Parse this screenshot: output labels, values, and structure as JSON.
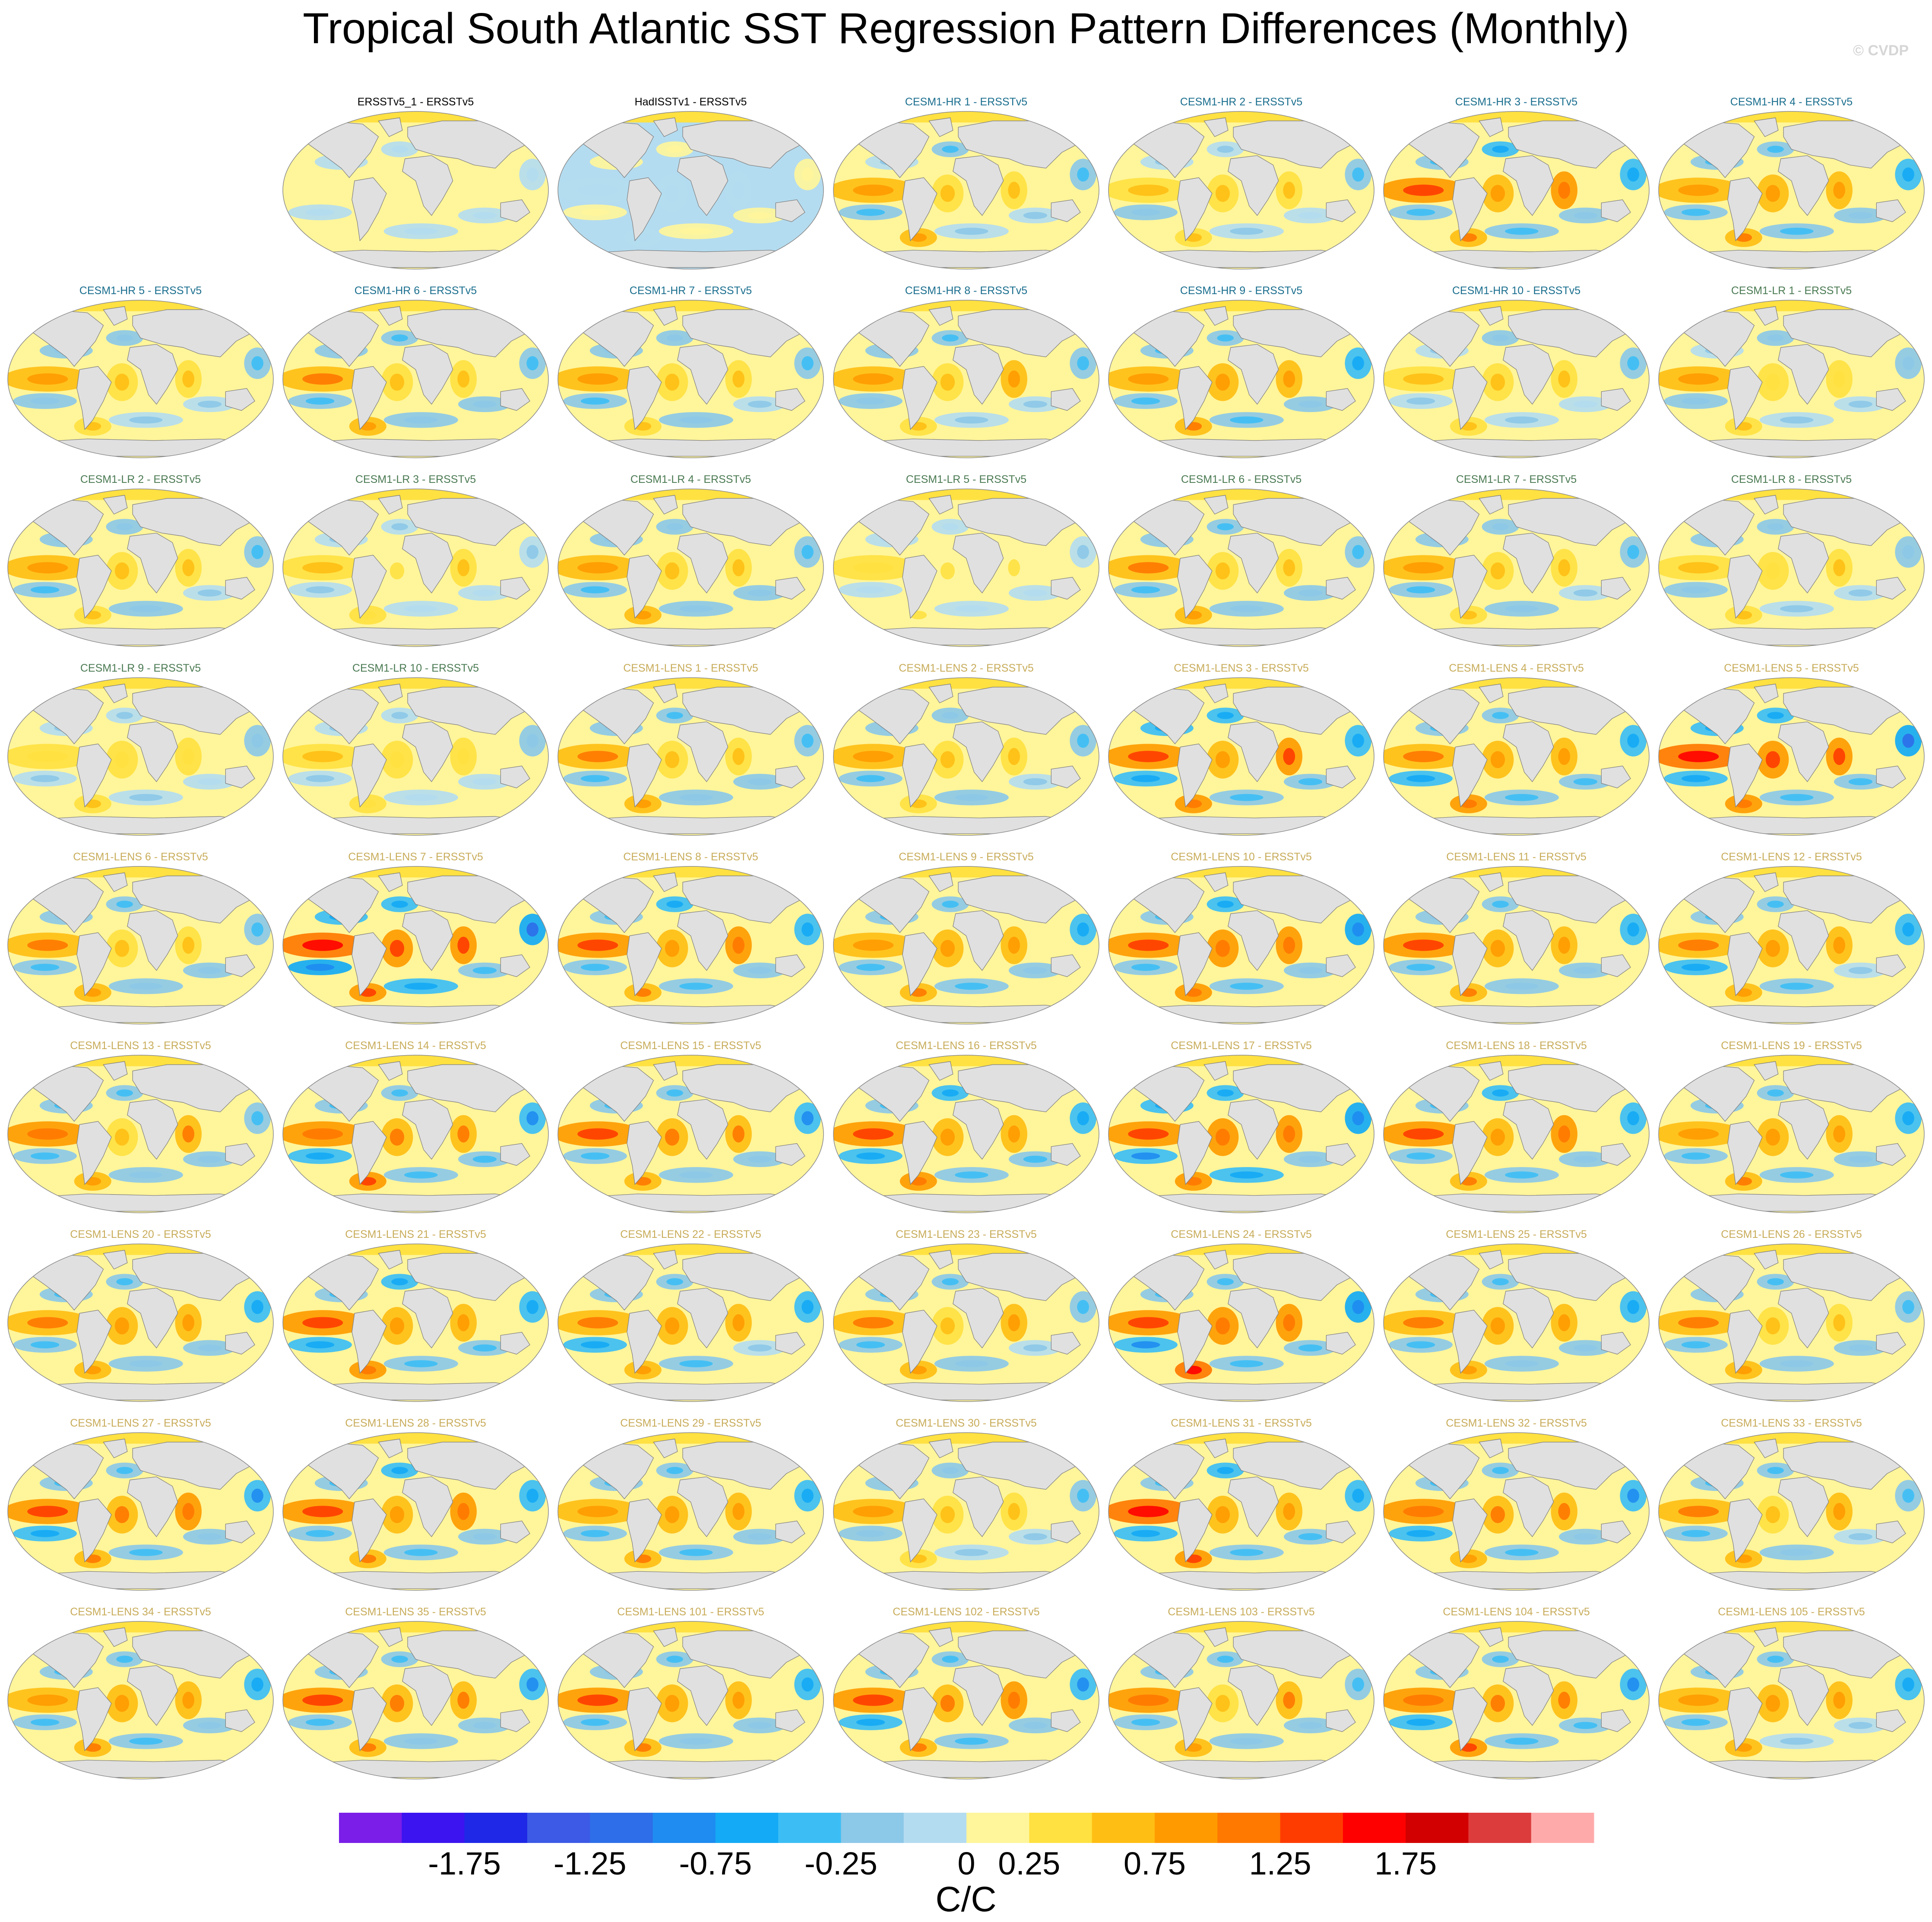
{
  "chart_data": {
    "type": "heatmap",
    "title": "Tropical South Atlantic SST Regression Pattern Differences (Monthly)",
    "watermark": "© CVDP",
    "projection": "global-map",
    "colorbar": {
      "orientation": "horizontal",
      "unit_label": "C/C",
      "tick_labels": [
        "-1.75",
        "-1.25",
        "-0.75",
        "-0.25",
        "0",
        "0.25",
        "0.75",
        "1.25",
        "1.75"
      ],
      "colors": [
        "#7a1ee8",
        "#3c14f0",
        "#1e28e6",
        "#3c5ae6",
        "#2e6ee8",
        "#1e8cf0",
        "#14aaf5",
        "#3cbef5",
        "#8cc8e8",
        "#b4dcf0",
        "#fff59b",
        "#ffe141",
        "#ffbe14",
        "#ff9b00",
        "#ff7800",
        "#ff3c00",
        "#ff0000",
        "#d20000",
        "#dc3c3c",
        "#ffaaaa"
      ]
    },
    "land_color": "#e0e0e0",
    "panel_title_colors": {
      "obs": "#000000",
      "CESM1-HR": "#1a6e8e",
      "CESM1-LR": "#4a7a52",
      "CESM1-LENS": "#c8ac5a"
    },
    "panels": [
      {
        "title": "ERSSTv5_1 - ERSSTv5",
        "group": "obs",
        "anomaly": 0.05
      },
      {
        "title": "HadISSTv1 - ERSSTv5",
        "group": "obs",
        "anomaly": -0.02
      },
      {
        "title": "CESM1-HR 1 - ERSSTv5",
        "group": "CESM1-HR",
        "anomaly": 0.3
      },
      {
        "title": "CESM1-HR 2 - ERSSTv5",
        "group": "CESM1-HR",
        "anomaly": 0.25
      },
      {
        "title": "CESM1-HR 3 - ERSSTv5",
        "group": "CESM1-HR",
        "anomaly": 0.45
      },
      {
        "title": "CESM1-HR 4 - ERSSTv5",
        "group": "CESM1-HR",
        "anomaly": 0.4
      },
      {
        "title": "CESM1-HR 5 - ERSSTv5",
        "group": "CESM1-HR",
        "anomaly": 0.3
      },
      {
        "title": "CESM1-HR 6 - ERSSTv5",
        "group": "CESM1-HR",
        "anomaly": 0.35
      },
      {
        "title": "CESM1-HR 7 - ERSSTv5",
        "group": "CESM1-HR",
        "anomaly": 0.3
      },
      {
        "title": "CESM1-HR 8 - ERSSTv5",
        "group": "CESM1-HR",
        "anomaly": 0.3
      },
      {
        "title": "CESM1-HR 9 - ERSSTv5",
        "group": "CESM1-HR",
        "anomaly": 0.4
      },
      {
        "title": "CESM1-HR 10 - ERSSTv5",
        "group": "CESM1-HR",
        "anomaly": 0.25
      },
      {
        "title": "CESM1-LR 1 - ERSSTv5",
        "group": "CESM1-LR",
        "anomaly": 0.25
      },
      {
        "title": "CESM1-LR 2 - ERSSTv5",
        "group": "CESM1-LR",
        "anomaly": 0.3
      },
      {
        "title": "CESM1-LR 3 - ERSSTv5",
        "group": "CESM1-LR",
        "anomaly": 0.2
      },
      {
        "title": "CESM1-LR 4 - ERSSTv5",
        "group": "CESM1-LR",
        "anomaly": 0.35
      },
      {
        "title": "CESM1-LR 5 - ERSSTv5",
        "group": "CESM1-LR",
        "anomaly": 0.15
      },
      {
        "title": "CESM1-LR 6 - ERSSTv5",
        "group": "CESM1-LR",
        "anomaly": 0.35
      },
      {
        "title": "CESM1-LR 7 - ERSSTv5",
        "group": "CESM1-LR",
        "anomaly": 0.3
      },
      {
        "title": "CESM1-LR 8 - ERSSTv5",
        "group": "CESM1-LR",
        "anomaly": 0.25
      },
      {
        "title": "CESM1-LR 9 - ERSSTv5",
        "group": "CESM1-LR",
        "anomaly": 0.2
      },
      {
        "title": "CESM1-LR 10 - ERSSTv5",
        "group": "CESM1-LR",
        "anomaly": 0.2
      },
      {
        "title": "CESM1-LENS 1 - ERSSTv5",
        "group": "CESM1-LENS",
        "anomaly": 0.35
      },
      {
        "title": "CESM1-LENS 2 - ERSSTv5",
        "group": "CESM1-LENS",
        "anomaly": 0.3
      },
      {
        "title": "CESM1-LENS 3 - ERSSTv5",
        "group": "CESM1-LENS",
        "anomaly": 0.5
      },
      {
        "title": "CESM1-LENS 4 - ERSSTv5",
        "group": "CESM1-LENS",
        "anomaly": 0.45
      },
      {
        "title": "CESM1-LENS 5 - ERSSTv5",
        "group": "CESM1-LENS",
        "anomaly": 0.55
      },
      {
        "title": "CESM1-LENS 6 - ERSSTv5",
        "group": "CESM1-LENS",
        "anomaly": 0.35
      },
      {
        "title": "CESM1-LENS 7 - ERSSTv5",
        "group": "CESM1-LENS",
        "anomaly": 0.6
      },
      {
        "title": "CESM1-LENS 8 - ERSSTv5",
        "group": "CESM1-LENS",
        "anomaly": 0.45
      },
      {
        "title": "CESM1-LENS 9 - ERSSTv5",
        "group": "CESM1-LENS",
        "anomaly": 0.4
      },
      {
        "title": "CESM1-LENS 10 - ERSSTv5",
        "group": "CESM1-LENS",
        "anomaly": 0.5
      },
      {
        "title": "CESM1-LENS 11 - ERSSTv5",
        "group": "CESM1-LENS",
        "anomaly": 0.4
      },
      {
        "title": "CESM1-LENS 12 - ERSSTv5",
        "group": "CESM1-LENS",
        "anomaly": 0.4
      },
      {
        "title": "CESM1-LENS 13 - ERSSTv5",
        "group": "CESM1-LENS",
        "anomaly": 0.4
      },
      {
        "title": "CESM1-LENS 14 - ERSSTv5",
        "group": "CESM1-LENS",
        "anomaly": 0.5
      },
      {
        "title": "CESM1-LENS 15 - ERSSTv5",
        "group": "CESM1-LENS",
        "anomaly": 0.45
      },
      {
        "title": "CESM1-LENS 16 - ERSSTv5",
        "group": "CESM1-LENS",
        "anomaly": 0.45
      },
      {
        "title": "CESM1-LENS 17 - ERSSTv5",
        "group": "CESM1-LENS",
        "anomaly": 0.55
      },
      {
        "title": "CESM1-LENS 18 - ERSSTv5",
        "group": "CESM1-LENS",
        "anomaly": 0.45
      },
      {
        "title": "CESM1-LENS 19 - ERSSTv5",
        "group": "CESM1-LENS",
        "anomaly": 0.4
      },
      {
        "title": "CESM1-LENS 20 - ERSSTv5",
        "group": "CESM1-LENS",
        "anomaly": 0.4
      },
      {
        "title": "CESM1-LENS 21 - ERSSTv5",
        "group": "CESM1-LENS",
        "anomaly": 0.45
      },
      {
        "title": "CESM1-LENS 22 - ERSSTv5",
        "group": "CESM1-LENS",
        "anomaly": 0.4
      },
      {
        "title": "CESM1-LENS 23 - ERSSTv5",
        "group": "CESM1-LENS",
        "anomaly": 0.35
      },
      {
        "title": "CESM1-LENS 24 - ERSSTv5",
        "group": "CESM1-LENS",
        "anomaly": 0.55
      },
      {
        "title": "CESM1-LENS 25 - ERSSTv5",
        "group": "CESM1-LENS",
        "anomaly": 0.4
      },
      {
        "title": "CESM1-LENS 26 - ERSSTv5",
        "group": "CESM1-LENS",
        "anomaly": 0.35
      },
      {
        "title": "CESM1-LENS 27 - ERSSTv5",
        "group": "CESM1-LENS",
        "anomaly": 0.5
      },
      {
        "title": "CESM1-LENS 28 - ERSSTv5",
        "group": "CESM1-LENS",
        "anomaly": 0.45
      },
      {
        "title": "CESM1-LENS 29 - ERSSTv5",
        "group": "CESM1-LENS",
        "anomaly": 0.4
      },
      {
        "title": "CESM1-LENS 30 - ERSSTv5",
        "group": "CESM1-LENS",
        "anomaly": 0.3
      },
      {
        "title": "CESM1-LENS 31 - ERSSTv5",
        "group": "CESM1-LENS",
        "anomaly": 0.5
      },
      {
        "title": "CESM1-LENS 32 - ERSSTv5",
        "group": "CESM1-LENS",
        "anomaly": 0.45
      },
      {
        "title": "CESM1-LENS 33 - ERSSTv5",
        "group": "CESM1-LENS",
        "anomaly": 0.35
      },
      {
        "title": "CESM1-LENS 34 - ERSSTv5",
        "group": "CESM1-LENS",
        "anomaly": 0.4
      },
      {
        "title": "CESM1-LENS 35 - ERSSTv5",
        "group": "CESM1-LENS",
        "anomaly": 0.45
      },
      {
        "title": "CESM1-LENS 101 - ERSSTv5",
        "group": "CESM1-LENS",
        "anomaly": 0.4
      },
      {
        "title": "CESM1-LENS 102 - ERSSTv5",
        "group": "CESM1-LENS",
        "anomaly": 0.5
      },
      {
        "title": "CESM1-LENS 103 - ERSSTv5",
        "group": "CESM1-LENS",
        "anomaly": 0.4
      },
      {
        "title": "CESM1-LENS 104 - ERSSTv5",
        "group": "CESM1-LENS",
        "anomaly": 0.5
      },
      {
        "title": "CESM1-LENS 105 - ERSSTv5",
        "group": "CESM1-LENS",
        "anomaly": 0.35
      }
    ]
  }
}
